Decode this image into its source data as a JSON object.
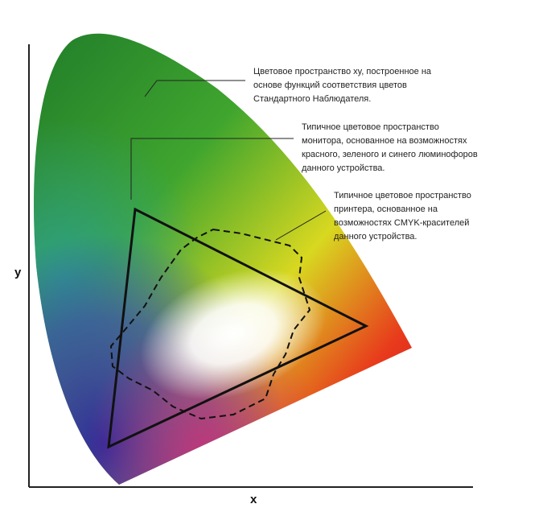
{
  "axes": {
    "y_label": "y",
    "x_label": "x"
  },
  "annotations": [
    {
      "lines": [
        "Цветовое пространство xy, построенное на",
        "основе функций соответствия цветов",
        "Стандартного Наблюдателя."
      ]
    },
    {
      "lines": [
        "Типичное цветовое пространство",
        "монитора, основанное на возможностях",
        "красного, зеленого и синего люминофоров",
        "данного устройства."
      ]
    },
    {
      "lines": [
        "Типичное цветовое пространство",
        "принтера, основанное на",
        "возможностях CMYK-красителей",
        "данного устройства."
      ]
    }
  ]
}
